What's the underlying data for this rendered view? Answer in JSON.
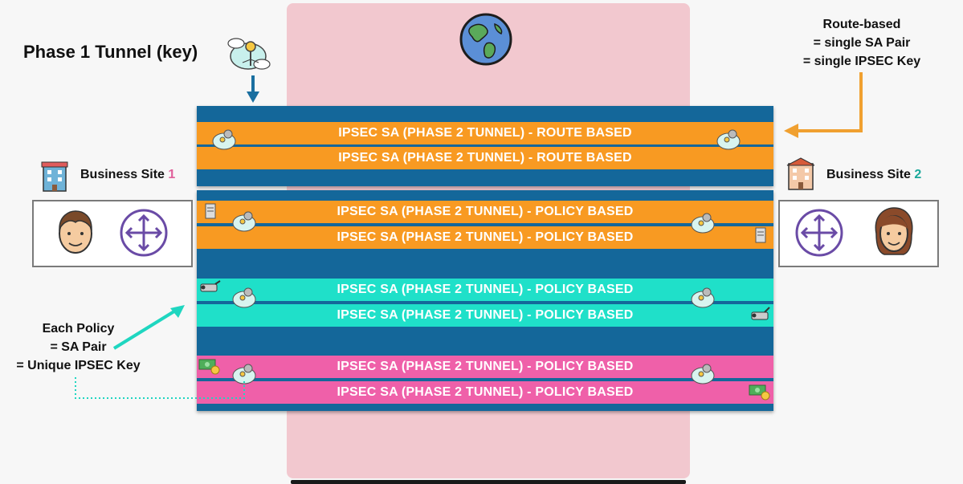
{
  "phase1": {
    "title": "Phase 1 Tunnel (key)"
  },
  "route_note": {
    "line1": "Route-based",
    "line2": "= single SA Pair",
    "line3": "= single IPSEC Key"
  },
  "policy_note": {
    "line1": "Each Policy",
    "line2": "= SA Pair",
    "line3": "= Unique IPSEC Key"
  },
  "site1": {
    "label": "Business Site ",
    "number": "1",
    "number_color": "#e0609a"
  },
  "site2": {
    "label": "Business Site ",
    "number": "2",
    "number_color": "#1aa89a"
  },
  "sa_rows": [
    {
      "label": "IPSEC SA (PHASE 2 TUNNEL) - ROUTE BASED"
    },
    {
      "label": "IPSEC SA (PHASE 2 TUNNEL) - ROUTE BASED"
    },
    {
      "label": "IPSEC SA (PHASE 2 TUNNEL) - POLICY BASED"
    },
    {
      "label": "IPSEC SA (PHASE 2 TUNNEL) - POLICY BASED"
    },
    {
      "label": "IPSEC SA (PHASE 2 TUNNEL) - POLICY BASED"
    },
    {
      "label": "IPSEC SA (PHASE 2 TUNNEL) - POLICY BASED"
    },
    {
      "label": "IPSEC SA (PHASE 2 TUNNEL) - POLICY BASED"
    },
    {
      "label": "IPSEC SA (PHASE 2 TUNNEL) - POLICY BASED"
    }
  ],
  "colors": {
    "tunnel": "#14679a",
    "route": "#f89a22",
    "policy_teal": "#1fe0c9",
    "policy_pink": "#ef60a9",
    "internet": "#f2c8cf",
    "arrow_orange": "#f0a030",
    "arrow_teal": "#1fd6c0",
    "arrow_blue": "#1a6fa0"
  },
  "icons": [
    "globe-icon",
    "cloud-key-icon",
    "building-icon",
    "person-icon",
    "router-icon",
    "server-icon",
    "camera-icon",
    "money-icon"
  ]
}
